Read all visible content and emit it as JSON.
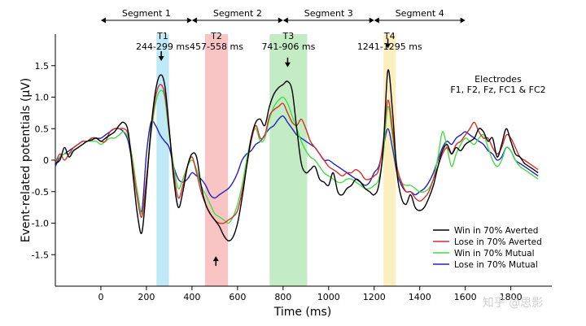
{
  "chart_data": {
    "type": "line",
    "xlabel": "Time (ms)",
    "ylabel": "Event-related potentials (μV)",
    "xlim": [
      -200,
      1980
    ],
    "ylim": [
      -2.0,
      2.0
    ],
    "xticks": [
      0,
      200,
      400,
      600,
      800,
      1000,
      1200,
      1400,
      1600,
      1800
    ],
    "yticks": [
      -1.5,
      -1.0,
      -0.5,
      0,
      0.5,
      1.0,
      1.5
    ],
    "ytick_labels": [
      "-1.5",
      "-1.0",
      "-0.5",
      "0",
      "0.5",
      "1.0",
      "1.5"
    ],
    "electrodes_label": [
      "Electrodes",
      "F1, F2, Fz, FC1 & FC2"
    ],
    "segments": [
      {
        "label": "Segment 1",
        "start": 0,
        "end": 400
      },
      {
        "label": "Segment 2",
        "start": 400,
        "end": 800
      },
      {
        "label": "Segment 3",
        "start": 800,
        "end": 1200
      },
      {
        "label": "Segment 4",
        "start": 1200,
        "end": 1600
      }
    ],
    "windows": [
      {
        "name": "T1",
        "range_label": "244-299 ms",
        "start": 244,
        "end": 299,
        "color": "#bfe9f7",
        "arrow": "down",
        "arrow_x": 265,
        "arrow_y": 1.6
      },
      {
        "name": "T2",
        "range_label": "457-558 ms",
        "start": 457,
        "end": 558,
        "color": "#f9c4c4",
        "arrow": "up",
        "arrow_x": 505,
        "arrow_y": -1.55
      },
      {
        "name": "T3",
        "range_label": "741-906 ms",
        "start": 741,
        "end": 906,
        "color": "#c4ecc4",
        "arrow": "down",
        "arrow_x": 820,
        "arrow_y": 1.5
      },
      {
        "name": "T4",
        "range_label": "1241-1295 ms",
        "start": 1241,
        "end": 1295,
        "color": "#fbefbf",
        "arrow": "down",
        "arrow_x": 1260,
        "arrow_y": 1.8
      }
    ],
    "x": [
      -200,
      -180,
      -160,
      -140,
      -120,
      -100,
      -80,
      -60,
      -40,
      -20,
      0,
      20,
      40,
      60,
      80,
      100,
      120,
      140,
      160,
      180,
      200,
      220,
      240,
      260,
      280,
      300,
      320,
      340,
      360,
      380,
      400,
      420,
      440,
      460,
      480,
      500,
      520,
      540,
      560,
      580,
      600,
      620,
      640,
      660,
      680,
      700,
      720,
      740,
      760,
      780,
      800,
      820,
      840,
      860,
      880,
      900,
      920,
      940,
      960,
      980,
      1000,
      1020,
      1040,
      1060,
      1080,
      1100,
      1120,
      1140,
      1160,
      1180,
      1200,
      1220,
      1240,
      1260,
      1280,
      1300,
      1320,
      1340,
      1360,
      1380,
      1400,
      1420,
      1440,
      1460,
      1480,
      1500,
      1520,
      1540,
      1560,
      1580,
      1600,
      1620,
      1640,
      1660,
      1680,
      1700,
      1720,
      1740,
      1760,
      1780,
      1800,
      1820,
      1840,
      1860,
      1880,
      1900,
      1920
    ],
    "series": [
      {
        "name": "Win in 70% Averted",
        "color": "#000000",
        "values": [
          -0.05,
          0.0,
          0.2,
          0.05,
          0.15,
          0.2,
          0.25,
          0.3,
          0.32,
          0.35,
          0.3,
          0.35,
          0.4,
          0.45,
          0.55,
          0.6,
          0.45,
          -0.2,
          -0.85,
          -1.15,
          -0.4,
          0.5,
          1.1,
          1.35,
          1.2,
          0.5,
          -0.3,
          -0.75,
          -0.5,
          -0.1,
          0.1,
          0.05,
          -0.4,
          -0.7,
          -0.85,
          -0.95,
          -1.05,
          -1.2,
          -1.28,
          -1.22,
          -1.0,
          -0.6,
          -0.1,
          0.35,
          0.6,
          0.65,
          0.55,
          0.85,
          1.05,
          1.15,
          1.2,
          1.25,
          1.1,
          0.5,
          -0.05,
          -0.2,
          -0.15,
          -0.1,
          -0.3,
          -0.35,
          -0.4,
          -0.2,
          -0.5,
          -0.55,
          -0.45,
          -0.4,
          -0.3,
          -0.35,
          -0.45,
          -0.5,
          -0.55,
          -0.4,
          0.2,
          1.42,
          0.8,
          -0.2,
          -0.6,
          -0.7,
          -0.55,
          -0.75,
          -0.8,
          -0.75,
          -0.6,
          -0.4,
          -0.1,
          0.15,
          0.25,
          0.1,
          0.2,
          0.15,
          0.25,
          0.3,
          0.35,
          0.5,
          0.45,
          0.3,
          0.35,
          0.05,
          0.25,
          0.5,
          0.3,
          0.1,
          0.05,
          -0.05,
          -0.1,
          -0.15,
          -0.2
        ]
      },
      {
        "name": "Lose in 70% Averted",
        "color": "#d32f2f",
        "values": [
          -0.05,
          0.1,
          0.0,
          0.1,
          0.2,
          0.25,
          0.3,
          0.3,
          0.35,
          0.35,
          0.3,
          0.3,
          0.45,
          0.5,
          0.5,
          0.5,
          0.4,
          -0.1,
          -0.6,
          -0.9,
          -0.3,
          0.45,
          1.0,
          1.2,
          1.05,
          0.45,
          -0.2,
          -0.6,
          -0.4,
          -0.1,
          0.05,
          -0.2,
          -0.5,
          -0.7,
          -0.85,
          -0.95,
          -1.0,
          -1.0,
          -0.95,
          -0.9,
          -0.8,
          -0.5,
          -0.1,
          0.3,
          0.55,
          0.35,
          0.4,
          0.7,
          0.8,
          0.85,
          0.9,
          0.75,
          0.6,
          0.55,
          0.65,
          0.5,
          0.3,
          0.2,
          0.1,
          0.0,
          -0.1,
          -0.15,
          -0.2,
          -0.25,
          -0.2,
          -0.2,
          -0.15,
          -0.2,
          -0.3,
          -0.3,
          -0.25,
          -0.15,
          0.3,
          0.95,
          0.5,
          -0.1,
          -0.35,
          -0.5,
          -0.5,
          -0.6,
          -0.65,
          -0.6,
          -0.5,
          -0.3,
          -0.1,
          0.1,
          0.2,
          0.1,
          0.25,
          0.3,
          0.4,
          0.5,
          0.6,
          0.45,
          0.35,
          0.35,
          0.2,
          0.1,
          0.2,
          0.4,
          0.35,
          0.2,
          0.05,
          0.0,
          -0.05,
          -0.1,
          -0.15
        ]
      },
      {
        "name": "Win in 70% Mutual",
        "color": "#44dd44",
        "values": [
          0.0,
          0.05,
          0.1,
          0.1,
          0.15,
          0.2,
          0.25,
          0.3,
          0.3,
          0.3,
          0.25,
          0.3,
          0.35,
          0.35,
          0.4,
          0.45,
          0.35,
          0.0,
          -0.5,
          -0.85,
          -0.3,
          0.4,
          0.9,
          1.1,
          1.0,
          0.4,
          -0.1,
          -0.45,
          -0.3,
          -0.1,
          0.0,
          -0.15,
          -0.4,
          -0.55,
          -0.7,
          -0.85,
          -0.9,
          -0.95,
          -1.0,
          -0.9,
          -0.7,
          -0.4,
          0.0,
          0.35,
          0.5,
          0.3,
          0.35,
          0.65,
          0.85,
          0.95,
          1.0,
          0.9,
          0.7,
          0.5,
          0.3,
          0.15,
          0.05,
          0.0,
          -0.1,
          -0.2,
          -0.25,
          -0.3,
          -0.35,
          -0.35,
          -0.3,
          -0.3,
          -0.35,
          -0.4,
          -0.45,
          -0.45,
          -0.4,
          -0.3,
          0.1,
          0.85,
          0.4,
          -0.15,
          -0.35,
          -0.4,
          -0.4,
          -0.45,
          -0.5,
          -0.5,
          -0.45,
          -0.3,
          0.05,
          0.45,
          0.2,
          -0.1,
          0.1,
          0.25,
          0.35,
          0.3,
          0.25,
          0.35,
          0.4,
          0.2,
          0.0,
          -0.1,
          0.0,
          0.2,
          0.15,
          0.0,
          -0.1,
          -0.15,
          -0.2,
          -0.25,
          -0.3
        ]
      },
      {
        "name": "Lose in 70% Mutual",
        "color": "#2222bb",
        "values": [
          -0.1,
          0.05,
          0.1,
          0.15,
          0.2,
          0.25,
          0.3,
          0.3,
          0.35,
          0.35,
          0.35,
          0.4,
          0.45,
          0.5,
          0.5,
          0.45,
          0.3,
          -0.1,
          -0.5,
          -0.8,
          0.1,
          0.6,
          0.55,
          0.4,
          0.3,
          0.2,
          -0.1,
          -0.3,
          -0.35,
          -0.3,
          -0.2,
          -0.25,
          -0.3,
          -0.4,
          -0.55,
          -0.6,
          -0.55,
          -0.5,
          -0.45,
          -0.35,
          -0.2,
          0.0,
          0.1,
          0.15,
          0.25,
          0.3,
          0.4,
          0.5,
          0.55,
          0.65,
          0.7,
          0.6,
          0.5,
          0.4,
          0.35,
          0.3,
          0.25,
          0.2,
          0.1,
          0.0,
          0.0,
          -0.05,
          -0.1,
          -0.15,
          -0.2,
          -0.25,
          -0.3,
          -0.35,
          -0.4,
          -0.35,
          -0.2,
          -0.1,
          0.2,
          0.5,
          0.2,
          -0.2,
          -0.4,
          -0.5,
          -0.5,
          -0.55,
          -0.5,
          -0.45,
          -0.35,
          -0.2,
          0.0,
          0.2,
          0.3,
          0.25,
          0.35,
          0.4,
          0.45,
          0.4,
          0.35,
          0.3,
          0.25,
          0.15,
          0.1,
          0.0,
          0.05,
          0.2,
          0.15,
          0.0,
          -0.05,
          -0.1,
          -0.15,
          -0.2,
          -0.25
        ]
      }
    ],
    "legend_position": "bottom-right"
  },
  "watermark": "知乎 @思影"
}
